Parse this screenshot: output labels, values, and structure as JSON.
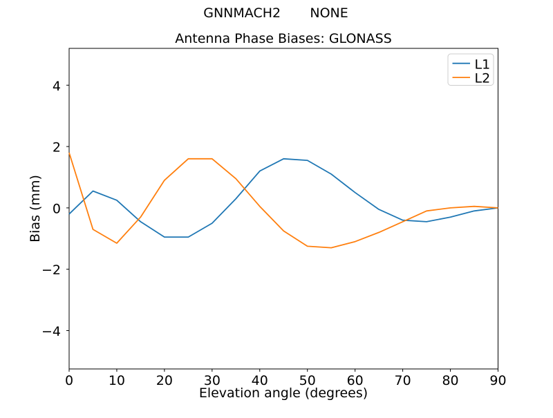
{
  "suptitle": "GNNMACH2       NONE",
  "chart_data": {
    "type": "line",
    "title": "Antenna Phase Biases: GLONASS",
    "xlabel": "Elevation angle (degrees)",
    "ylabel": "Bias (mm)",
    "xlim": [
      0,
      90
    ],
    "ylim": [
      -5.25,
      5.2
    ],
    "xticks": [
      0,
      10,
      20,
      30,
      40,
      50,
      60,
      70,
      80,
      90
    ],
    "yticks": [
      -4,
      -2,
      0,
      2,
      4
    ],
    "grid": false,
    "legend_position": "upper right",
    "background_color": "#ffffff",
    "spine_color": "#000000",
    "legend_edge_color": "#cccccc",
    "x": [
      0,
      5,
      10,
      15,
      20,
      25,
      30,
      35,
      40,
      45,
      50,
      55,
      60,
      65,
      70,
      75,
      80,
      85,
      90
    ],
    "series": [
      {
        "name": "L1",
        "color": "#1f77b4",
        "values": [
          -0.2,
          0.55,
          0.25,
          -0.45,
          -0.95,
          -0.95,
          -0.5,
          0.3,
          1.2,
          1.6,
          1.55,
          1.1,
          0.5,
          -0.05,
          -0.4,
          -0.45,
          -0.3,
          -0.1,
          0.0
        ]
      },
      {
        "name": "L2",
        "color": "#ff7f0e",
        "values": [
          1.8,
          -0.7,
          -1.15,
          -0.3,
          0.9,
          1.6,
          1.6,
          0.95,
          0.05,
          -0.75,
          -1.25,
          -1.3,
          -1.1,
          -0.8,
          -0.45,
          -0.1,
          0.0,
          0.05,
          0.0
        ]
      }
    ]
  }
}
